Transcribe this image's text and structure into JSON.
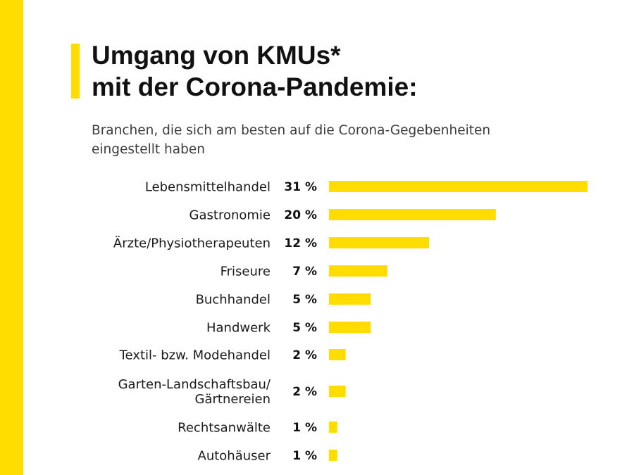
{
  "title_lines": [
    "Umgang von KMUs*",
    "mit der Corona-Pandemie:"
  ],
  "subtitle_lines": [
    "Branchen, die sich am besten auf die Corona-Gegebenheiten",
    "eingestellt haben"
  ],
  "colors": {
    "accent": "#FFDD00",
    "text": "#1a1a1a",
    "subtext": "#3c3c3c"
  },
  "chart_data": {
    "type": "bar",
    "orientation": "horizontal",
    "unit": "%",
    "categories": [
      [
        "Lebensmittelhandel"
      ],
      [
        "Gastronomie"
      ],
      [
        "Ärzte/Physiotherapeuten"
      ],
      [
        "Friseure"
      ],
      [
        "Buchhandel"
      ],
      [
        "Handwerk"
      ],
      [
        "Textil- bzw. Modehandel"
      ],
      [
        "Garten-Landschaftsbau/",
        "Gärtnereien"
      ],
      [
        "Rechtsanwälte"
      ],
      [
        "Autohäuser"
      ]
    ],
    "values": [
      31,
      20,
      12,
      7,
      5,
      5,
      2,
      2,
      1,
      1
    ],
    "value_labels": [
      "31 %",
      "20 %",
      "12 %",
      "7 %",
      "5 %",
      "5 %",
      "2 %",
      "2 %",
      "1 %",
      "1 %"
    ],
    "xlim": [
      0,
      31
    ],
    "grid": false,
    "axes_visible": false
  }
}
